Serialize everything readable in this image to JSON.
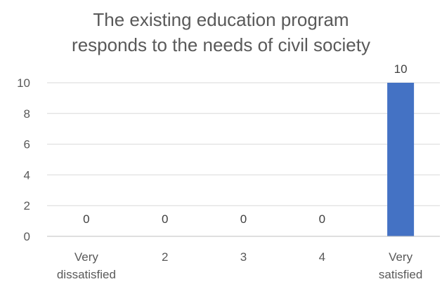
{
  "chart_data": {
    "type": "bar",
    "title": "The existing education program responds to the needs of civil society",
    "title_lines": [
      "The existing education program",
      "responds to the needs of civil society"
    ],
    "categories": [
      "Very dissatisfied",
      "2",
      "3",
      "4",
      "Very satisfied"
    ],
    "category_label_lines": [
      [
        "Very",
        "dissatisfied"
      ],
      [
        "2"
      ],
      [
        "3"
      ],
      [
        "4"
      ],
      [
        "Very",
        "satisfied"
      ]
    ],
    "values": [
      0,
      0,
      0,
      0,
      10
    ],
    "data_labels": [
      "0",
      "0",
      "0",
      "0",
      "10"
    ],
    "y_ticks": [
      0,
      2,
      4,
      6,
      8,
      10
    ],
    "ylim": [
      0,
      10
    ],
    "xlabel": "",
    "ylabel": "",
    "grid": true,
    "legend": "none",
    "bar_color": "#4472C4",
    "grid_color": "#D9D9D9",
    "axis_color": "#BFBFBF"
  }
}
